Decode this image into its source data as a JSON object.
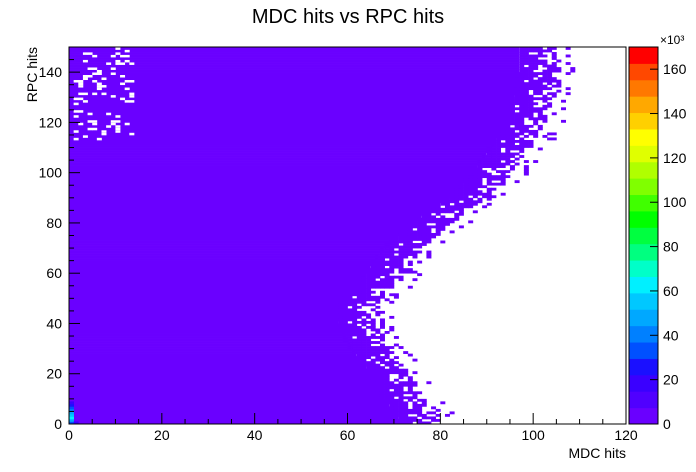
{
  "chart_data": {
    "type": "heatmap",
    "title": "MDC hits vs RPC hits",
    "xlabel": "MDC hits",
    "ylabel": "RPC hits",
    "xlim": [
      0,
      120
    ],
    "ylim": [
      0,
      150
    ],
    "x_ticks": [
      0,
      20,
      40,
      60,
      80,
      100,
      120
    ],
    "y_ticks": [
      0,
      20,
      40,
      60,
      80,
      100,
      120,
      140
    ],
    "bin_width": 1,
    "x_extent_by_y": [
      {
        "y": 0,
        "x_max": 80
      },
      {
        "y": 10,
        "x_max": 76
      },
      {
        "y": 20,
        "x_max": 73
      },
      {
        "y": 30,
        "x_max": 69
      },
      {
        "y": 40,
        "x_max": 66
      },
      {
        "y": 50,
        "x_max": 67
      },
      {
        "y": 60,
        "x_max": 72
      },
      {
        "y": 70,
        "x_max": 76
      },
      {
        "y": 80,
        "x_max": 82
      },
      {
        "y": 90,
        "x_max": 90
      },
      {
        "y": 100,
        "x_max": 95
      },
      {
        "y": 110,
        "x_max": 99
      },
      {
        "y": 120,
        "x_max": 102
      },
      {
        "y": 130,
        "x_max": 104
      },
      {
        "y": 140,
        "x_max": 105
      },
      {
        "y": 150,
        "x_max": 105
      }
    ],
    "hot_spot": {
      "x": 0,
      "y": 0
    },
    "colorbar": {
      "min": 0,
      "max": 170,
      "multiplier": "×10³",
      "ticks": [
        0,
        20,
        40,
        60,
        80,
        100,
        120,
        140,
        160
      ],
      "colors": [
        "#6a00ff",
        "#5000ff",
        "#3a00ff",
        "#1a10ff",
        "#0050ff",
        "#0080ff",
        "#00a8ff",
        "#00c8ff",
        "#00f0ff",
        "#00ffc8",
        "#00ff80",
        "#00ff40",
        "#00ff00",
        "#40ff00",
        "#80ff00",
        "#b0ff00",
        "#e0ff00",
        "#ffff00",
        "#ffd000",
        "#ffa800",
        "#ff7800",
        "#ff4800",
        "#ff0000"
      ]
    }
  }
}
